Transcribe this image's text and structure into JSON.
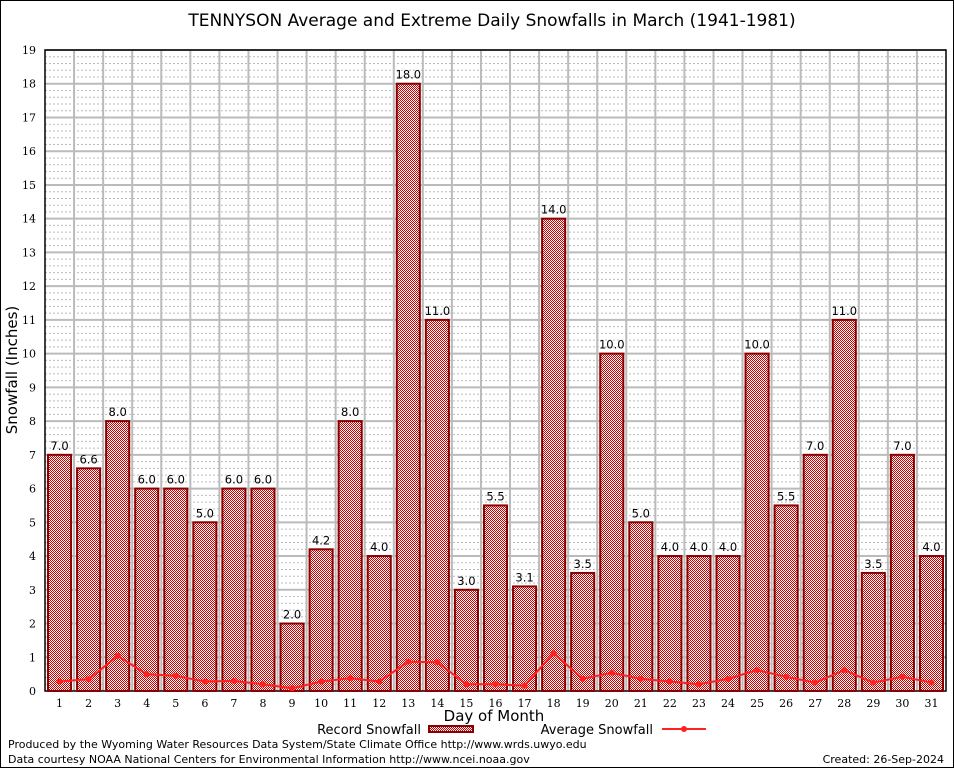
{
  "chart_data": {
    "type": "bar",
    "title": "TENNYSON Average and Extreme Daily Snowfalls in March (1941-1981)",
    "xlabel": "Day of Month",
    "ylabel": "Snowfall (Inches)",
    "ylim": [
      0,
      19
    ],
    "yticks": [
      "0",
      "1",
      "2",
      "3",
      "4",
      "5",
      "6",
      "7",
      "8",
      "9",
      "10",
      "11",
      "12",
      "13",
      "14",
      "15",
      "16",
      "17",
      "18",
      "19"
    ],
    "categories": [
      "1",
      "2",
      "3",
      "4",
      "5",
      "6",
      "7",
      "8",
      "9",
      "10",
      "11",
      "12",
      "13",
      "14",
      "15",
      "16",
      "17",
      "18",
      "19",
      "20",
      "21",
      "22",
      "23",
      "24",
      "25",
      "26",
      "27",
      "28",
      "29",
      "30",
      "31"
    ],
    "series": [
      {
        "name": "Record Snowfall",
        "type": "bar",
        "color": "#cc0000",
        "values": [
          7.0,
          6.6,
          8.0,
          6.0,
          6.0,
          5.0,
          6.0,
          6.0,
          2.0,
          4.2,
          8.0,
          4.0,
          18.0,
          11.0,
          3.0,
          5.5,
          3.1,
          14.0,
          3.5,
          10.0,
          5.0,
          4.0,
          4.0,
          4.0,
          10.0,
          5.5,
          7.0,
          11.0,
          3.5,
          7.0,
          4.0
        ],
        "labels": [
          "7.0",
          "6.6",
          "8.0",
          "6.0",
          "6.0",
          "5.0",
          "6.0",
          "6.0",
          "2.0",
          "4.2",
          "8.0",
          "4.0",
          "18.0",
          "11.0",
          "3.0",
          "5.5",
          "3.1",
          "14.0",
          "3.5",
          "10.0",
          "5.0",
          "4.0",
          "4.0",
          "4.0",
          "10.0",
          "5.5",
          "7.0",
          "11.0",
          "3.5",
          "7.0",
          "4.0"
        ]
      },
      {
        "name": "Average Snowfall",
        "type": "line",
        "color": "#ff2020",
        "values": [
          0.28,
          0.35,
          1.04,
          0.5,
          0.45,
          0.28,
          0.3,
          0.2,
          0.08,
          0.28,
          0.38,
          0.28,
          0.87,
          0.85,
          0.2,
          0.2,
          0.16,
          1.12,
          0.36,
          0.54,
          0.36,
          0.28,
          0.2,
          0.36,
          0.62,
          0.42,
          0.25,
          0.62,
          0.25,
          0.42,
          0.25
        ]
      }
    ],
    "grid": true,
    "legend": "bottom"
  },
  "footer": {
    "line1": "Produced by the Wyoming Water Resources Data System/State Climate Office http://www.wrds.uwyo.edu",
    "line2": "Data courtesy NOAA National Centers for Environmental Information http://www.ncei.noaa.gov",
    "created": "Created: 26-Sep-2024"
  }
}
